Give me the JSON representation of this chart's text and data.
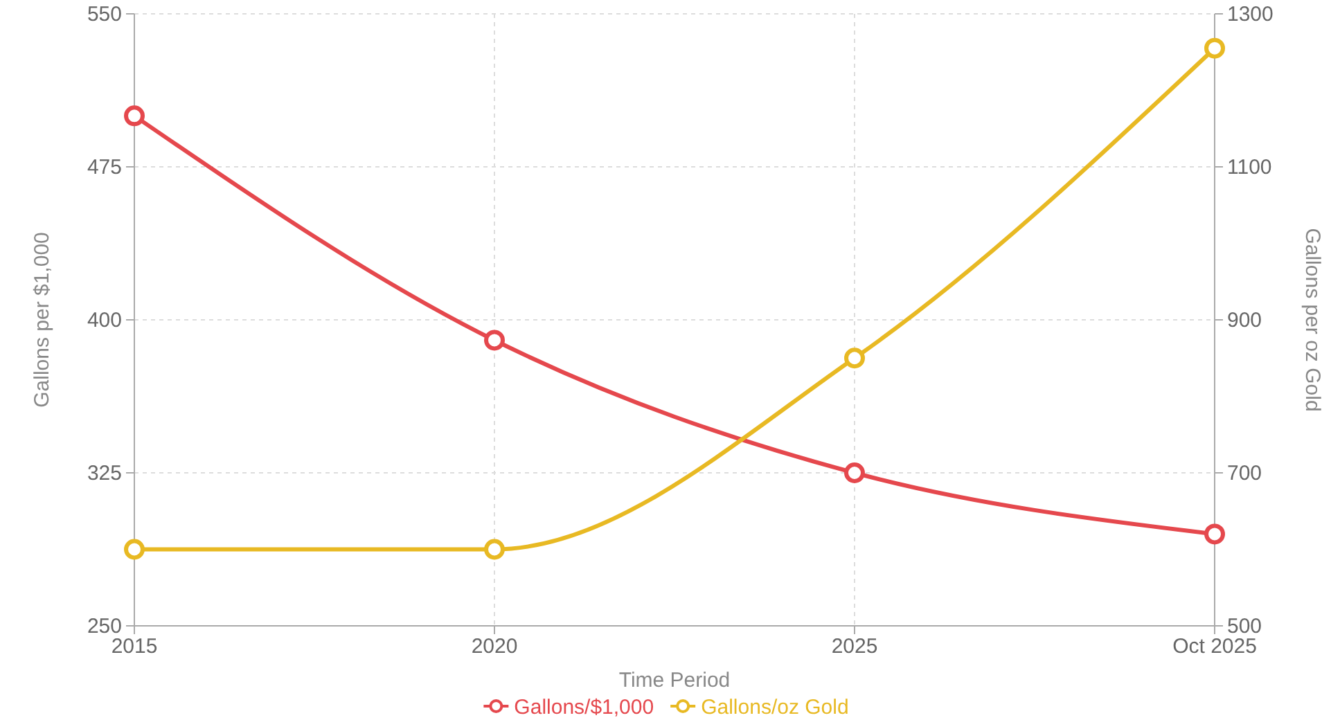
{
  "chart_data": {
    "type": "line",
    "xlabel": "Time Period",
    "ylabel": "Gallons per $1,000",
    "y2label": "Gallons per oz Gold",
    "categories": [
      "2015",
      "2020",
      "2025",
      "Oct 2025"
    ],
    "series": [
      {
        "name": "Gallons/$1,000",
        "color": "#e5484d",
        "values": [
          500,
          390,
          325,
          295
        ]
      },
      {
        "name": "Gallons/oz Gold",
        "color": "#e8b923",
        "values": [
          600,
          600,
          850,
          1255
        ],
        "axis": "y2"
      }
    ],
    "ylim": [
      250,
      550
    ],
    "yticks": [
      250,
      325,
      400,
      475,
      550
    ],
    "y2lim": [
      500,
      1300
    ],
    "y2ticks": [
      500,
      700,
      900,
      1100,
      1300
    ],
    "grid": true,
    "legend": "bottom",
    "marker": "circle",
    "line_style": "solid"
  }
}
